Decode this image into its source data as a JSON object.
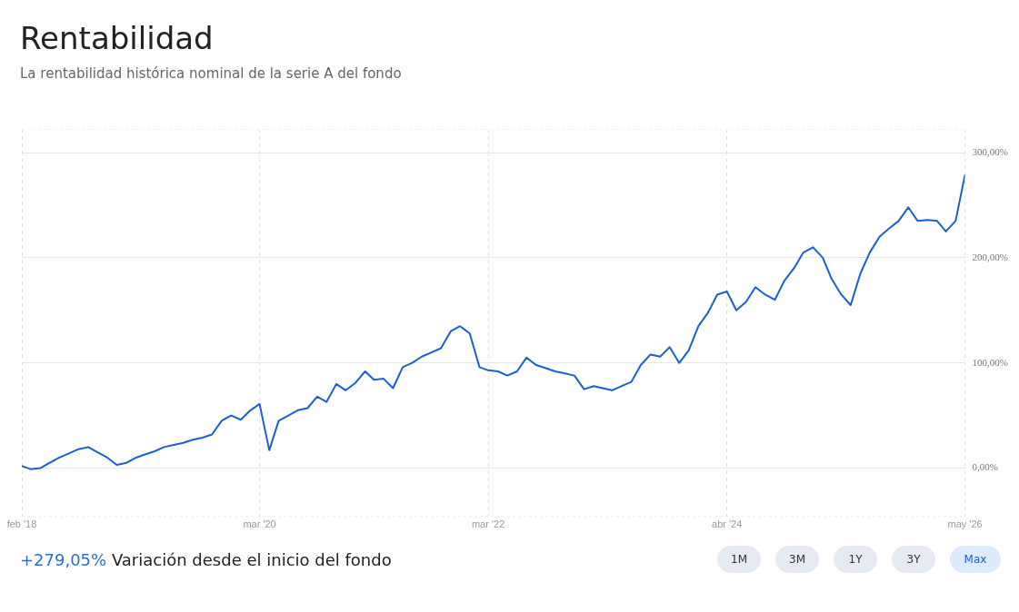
{
  "chart_data": {
    "type": "line",
    "title": "Rentabilidad",
    "subtitle": "La rentabilidad histórica nominal de la serie A del fondo",
    "annotations": [
      "+279,05%",
      "Variación desde el inicio del fondo",
      "1M",
      "3M",
      "1Y",
      "3Y",
      "Max"
    ],
    "x": [
      "2018-02",
      "2018-03",
      "2018-04",
      "2018-05",
      "2018-06",
      "2018-07",
      "2018-08",
      "2018-09",
      "2018-10",
      "2018-11",
      "2018-12",
      "2019-01",
      "2019-02",
      "2019-03",
      "2019-04",
      "2019-05",
      "2019-06",
      "2019-07",
      "2019-08",
      "2019-09",
      "2019-10",
      "2019-11",
      "2019-12",
      "2020-01",
      "2020-02",
      "2020-03",
      "2020-04",
      "2020-05",
      "2020-06",
      "2020-07",
      "2020-08",
      "2020-09",
      "2020-10",
      "2020-11",
      "2020-12",
      "2021-01",
      "2021-02",
      "2021-03",
      "2021-04",
      "2021-05",
      "2021-06",
      "2021-07",
      "2021-08",
      "2021-09",
      "2021-10",
      "2021-11",
      "2021-12",
      "2022-01",
      "2022-02",
      "2022-03",
      "2022-04",
      "2022-05",
      "2022-06",
      "2022-07",
      "2022-08",
      "2022-09",
      "2022-10",
      "2022-11",
      "2022-12",
      "2023-01",
      "2023-02",
      "2023-03",
      "2023-04",
      "2023-05",
      "2023-06",
      "2023-07",
      "2023-08",
      "2023-09",
      "2023-10",
      "2023-11",
      "2023-12",
      "2024-01",
      "2024-02",
      "2024-03",
      "2024-04",
      "2024-05",
      "2024-06",
      "2024-07",
      "2024-08",
      "2024-09",
      "2024-10",
      "2024-11",
      "2024-12",
      "2025-01",
      "2025-02",
      "2025-03",
      "2025-04",
      "2025-05",
      "2025-06",
      "2025-07",
      "2025-08",
      "2025-09",
      "2025-10",
      "2025-11",
      "2025-12",
      "2026-01",
      "2026-02",
      "2026-03",
      "2026-04",
      "2026-05"
    ],
    "series": [
      {
        "color": "#1a5fd6",
        "values": [
          2,
          -1,
          0,
          5,
          10,
          14,
          18,
          20,
          15,
          10,
          3,
          5,
          10,
          13,
          16,
          20,
          22,
          24,
          27,
          29,
          32,
          45,
          50,
          46,
          55,
          61,
          17,
          45,
          50,
          55,
          57,
          68,
          63,
          80,
          74,
          81,
          92,
          84,
          85,
          76,
          96,
          100,
          106,
          110,
          114,
          130,
          135,
          128,
          96,
          93,
          92,
          88,
          92,
          105,
          98,
          95,
          92,
          90,
          88,
          75,
          78,
          76,
          74,
          78,
          82,
          98,
          108,
          106,
          115,
          100,
          112,
          135,
          148,
          165,
          168,
          150,
          158,
          172,
          165,
          160,
          178,
          190,
          205,
          210,
          200,
          180,
          165,
          155,
          185,
          205,
          220,
          228,
          235,
          248,
          235,
          236,
          235,
          225,
          235,
          279.05
        ]
      }
    ],
    "xlim": [
      "2018-02",
      "2026-05"
    ],
    "xticks": [
      {
        "value": "2018-02",
        "label": "feb '18"
      },
      {
        "value": "2020-03",
        "label": "mar '20"
      },
      {
        "value": "2022-03",
        "label": "mar '22"
      },
      {
        "value": "2024-04",
        "label": "abr '24"
      },
      {
        "value": "2026-05",
        "label": "may '26"
      }
    ],
    "ylim": [
      -46,
      322
    ],
    "yticks": [
      {
        "value": 0,
        "label": "0,00%"
      },
      {
        "value": 100,
        "label": "100,00%"
      },
      {
        "value": 200,
        "label": "200,00%"
      },
      {
        "value": 300,
        "label": "300,00%"
      }
    ],
    "grid": true,
    "legend": false,
    "marker": "none",
    "line_style": "solid"
  }
}
